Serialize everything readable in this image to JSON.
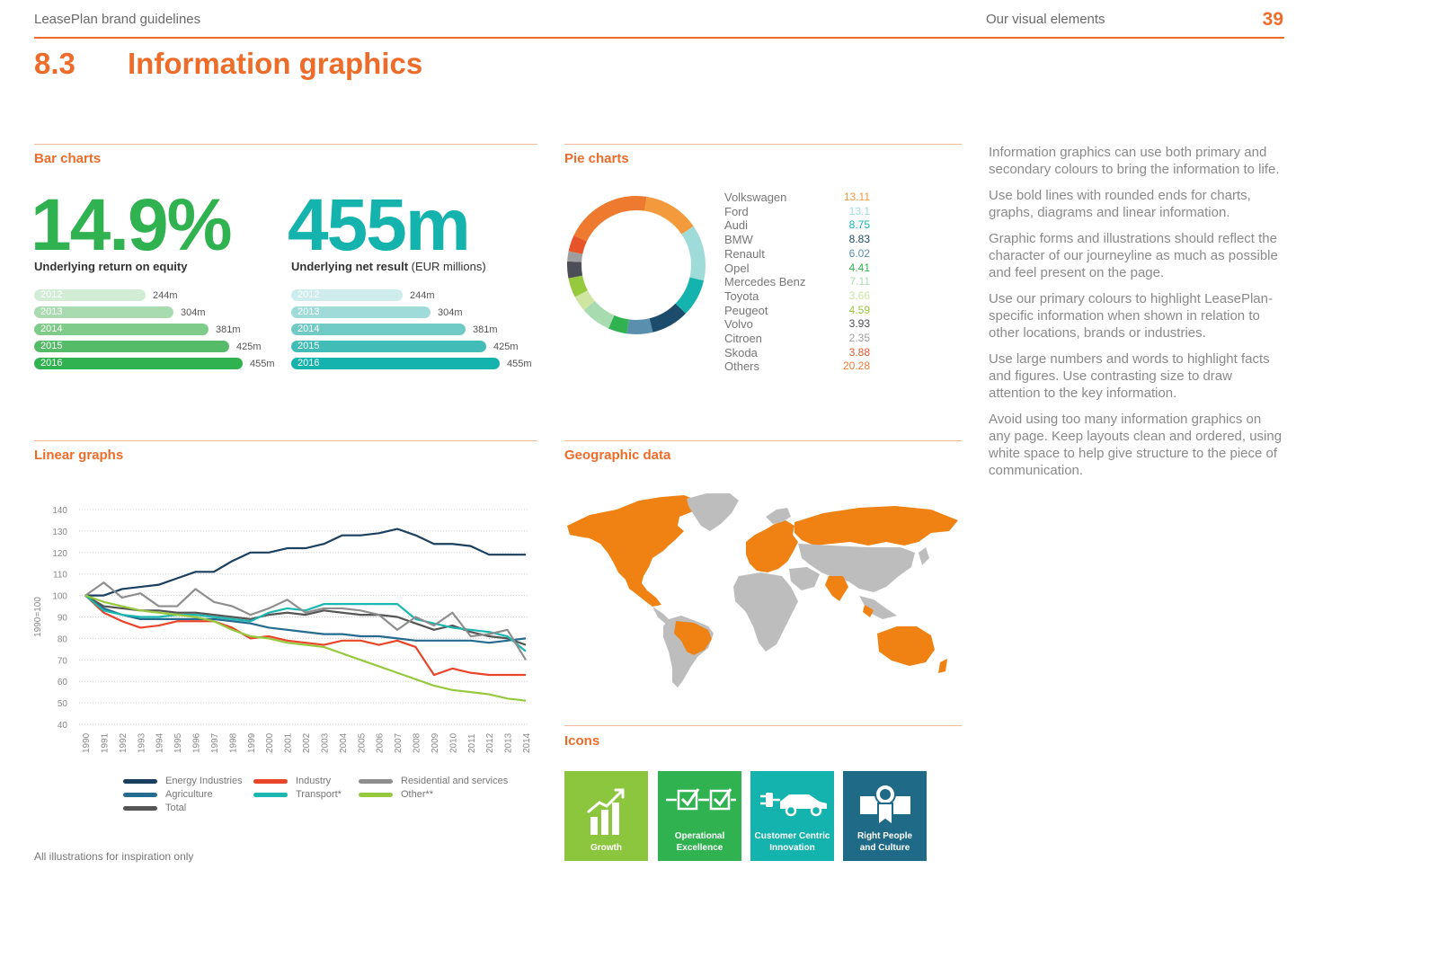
{
  "header": {
    "left": "LeasePlan brand guidelines",
    "right": "Our visual elements",
    "page": "39"
  },
  "section": {
    "number": "8.3",
    "title": "Information graphics"
  },
  "bar_charts": {
    "heading": "Bar charts",
    "left": {
      "big": "14.9%",
      "caption": "Underlying return on equity",
      "color": "#2fb24f",
      "years": [
        "2012",
        "2013",
        "2014",
        "2015",
        "2016"
      ],
      "values": [
        244,
        304,
        381,
        425,
        455
      ],
      "value_labels": [
        "244m",
        "304m",
        "381m",
        "425m",
        "455m"
      ],
      "colors": [
        "#d3ecd6",
        "#a9dbb1",
        "#7fcb8a",
        "#55bb68",
        "#2fb24f"
      ]
    },
    "right": {
      "big": "455m",
      "caption": "Underlying net result",
      "caption_light": " (EUR millions)",
      "color": "#14b3ad",
      "years": [
        "2012",
        "2013",
        "2014",
        "2015",
        "2016"
      ],
      "values": [
        244,
        304,
        381,
        425,
        455
      ],
      "value_labels": [
        "244m",
        "304m",
        "381m",
        "425m",
        "455m"
      ],
      "colors": [
        "#cdeceb",
        "#9fdbd8",
        "#70cac6",
        "#42bcb7",
        "#14b3ad"
      ]
    }
  },
  "pie_charts": {
    "heading": "Pie charts",
    "items": [
      {
        "name": "Volkswagen",
        "value": "13.11",
        "color": "#f29a3c"
      },
      {
        "name": "Ford",
        "value": "13.1",
        "color": "#9fdcd9"
      },
      {
        "name": "Audi",
        "value": "8.75",
        "color": "#14b3ad"
      },
      {
        "name": "BMW",
        "value": "8.83",
        "color": "#1b4c6b"
      },
      {
        "name": "Renault",
        "value": "6.02",
        "color": "#5a8fae"
      },
      {
        "name": "Opel",
        "value": "4.41",
        "color": "#2fb24f"
      },
      {
        "name": "Mercedes Benz",
        "value": "7.11",
        "color": "#a9dbb1"
      },
      {
        "name": "Toyota",
        "value": "3.66",
        "color": "#cfe6a3"
      },
      {
        "name": "Peugeot",
        "value": "4.59",
        "color": "#96c93d"
      },
      {
        "name": "Volvo",
        "value": "3.93",
        "color": "#4d4d57"
      },
      {
        "name": "Citroen",
        "value": "2.35",
        "color": "#9e9e9e"
      },
      {
        "name": "Skoda",
        "value": "3.88",
        "color": "#e8542a"
      },
      {
        "name": "Others",
        "value": "20.28",
        "color": "#ee7a2f"
      }
    ]
  },
  "description": [
    "Information graphics can use both primary and secondary colours to bring the information to life.",
    "Use bold lines with rounded ends for charts, graphs, diagrams and linear information.",
    "Graphic forms and illustrations should reflect the character of our journeyline as much as possible and feel present on the page.",
    "Use our primary colours to highlight LeasePlan-specific information when shown in relation to other locations, brands or industries.",
    "Use large numbers and words to highlight facts and figures. Use contrasting size to draw attention to the key information.",
    "Avoid using too many information graphics on any page. Keep layouts clean and ordered, using white space to help give structure to the piece of communication."
  ],
  "linear_graphs": {
    "heading": "Linear graphs"
  },
  "chart_data": {
    "type": "line",
    "ylabel": "1990=100",
    "ylim": [
      40,
      140
    ],
    "yticks": [
      40,
      50,
      60,
      70,
      80,
      90,
      100,
      110,
      120,
      130,
      140
    ],
    "x": [
      "1990",
      "1991",
      "1992",
      "1993",
      "1994",
      "1995",
      "1996",
      "1997",
      "1998",
      "1999",
      "2000",
      "2001",
      "2002",
      "2003",
      "2004",
      "2005",
      "2006",
      "2007",
      "2008",
      "2009",
      "2010",
      "2011",
      "2012",
      "2013",
      "2014"
    ],
    "grid": true,
    "series": [
      {
        "name": "Energy Industries",
        "color": "#1b3f5e",
        "values": [
          100,
          100,
          103,
          104,
          105,
          108,
          111,
          111,
          116,
          120,
          120,
          122,
          122,
          124,
          128,
          128,
          129,
          131,
          128,
          124,
          124,
          123,
          119,
          119,
          119
        ]
      },
      {
        "name": "Agriculture",
        "color": "#256b90",
        "values": [
          100,
          94,
          91,
          89,
          89,
          89,
          89,
          89,
          88,
          87,
          85,
          84,
          83,
          82,
          82,
          81,
          81,
          80,
          79,
          79,
          79,
          79,
          78,
          79,
          80
        ]
      },
      {
        "name": "Total",
        "color": "#555555",
        "values": [
          100,
          95,
          94,
          93,
          93,
          92,
          92,
          91,
          90,
          89,
          91,
          92,
          91,
          93,
          92,
          91,
          91,
          90,
          87,
          84,
          86,
          83,
          81,
          80,
          77
        ]
      },
      {
        "name": "Industry",
        "color": "#e8452a",
        "values": [
          100,
          92,
          88,
          85,
          86,
          88,
          88,
          88,
          85,
          80,
          81,
          79,
          78,
          77,
          79,
          79,
          77,
          79,
          76,
          63,
          66,
          64,
          63,
          63,
          63
        ]
      },
      {
        "name": "Transport*",
        "color": "#1bb7b0",
        "values": [
          100,
          93,
          91,
          90,
          90,
          91,
          91,
          90,
          89,
          88,
          92,
          94,
          93,
          96,
          96,
          96,
          96,
          96,
          89,
          87,
          85,
          84,
          83,
          81,
          74
        ]
      },
      {
        "name": "Residential and services",
        "color": "#8e8e8e",
        "values": [
          100,
          106,
          99,
          101,
          95,
          95,
          103,
          97,
          95,
          91,
          94,
          98,
          92,
          94,
          94,
          93,
          91,
          84,
          90,
          86,
          92,
          81,
          82,
          84,
          70
        ]
      },
      {
        "name": "Other**",
        "color": "#96c93d",
        "values": [
          100,
          97,
          95,
          93,
          92,
          91,
          90,
          88,
          84,
          81,
          80,
          78,
          77,
          76,
          73,
          70,
          67,
          64,
          61,
          58,
          56,
          55,
          54,
          52,
          51
        ]
      }
    ]
  },
  "geographic": {
    "heading": "Geographic data"
  },
  "icons": {
    "heading": "Icons",
    "tiles": [
      {
        "label1": "Growth",
        "label2": "",
        "color": "#8cc63f",
        "icon": "growth-icon"
      },
      {
        "label1": "Operational",
        "label2": "Excellence",
        "color": "#2fb24f",
        "icon": "checkbox-process-icon"
      },
      {
        "label1": "Customer Centric",
        "label2": "Innovation",
        "color": "#14b3ad",
        "icon": "electric-car-icon"
      },
      {
        "label1": "Right People",
        "label2": "and Culture",
        "color": "#1f6a86",
        "icon": "award-icon"
      }
    ]
  },
  "footnote": "All illustrations for inspiration only"
}
